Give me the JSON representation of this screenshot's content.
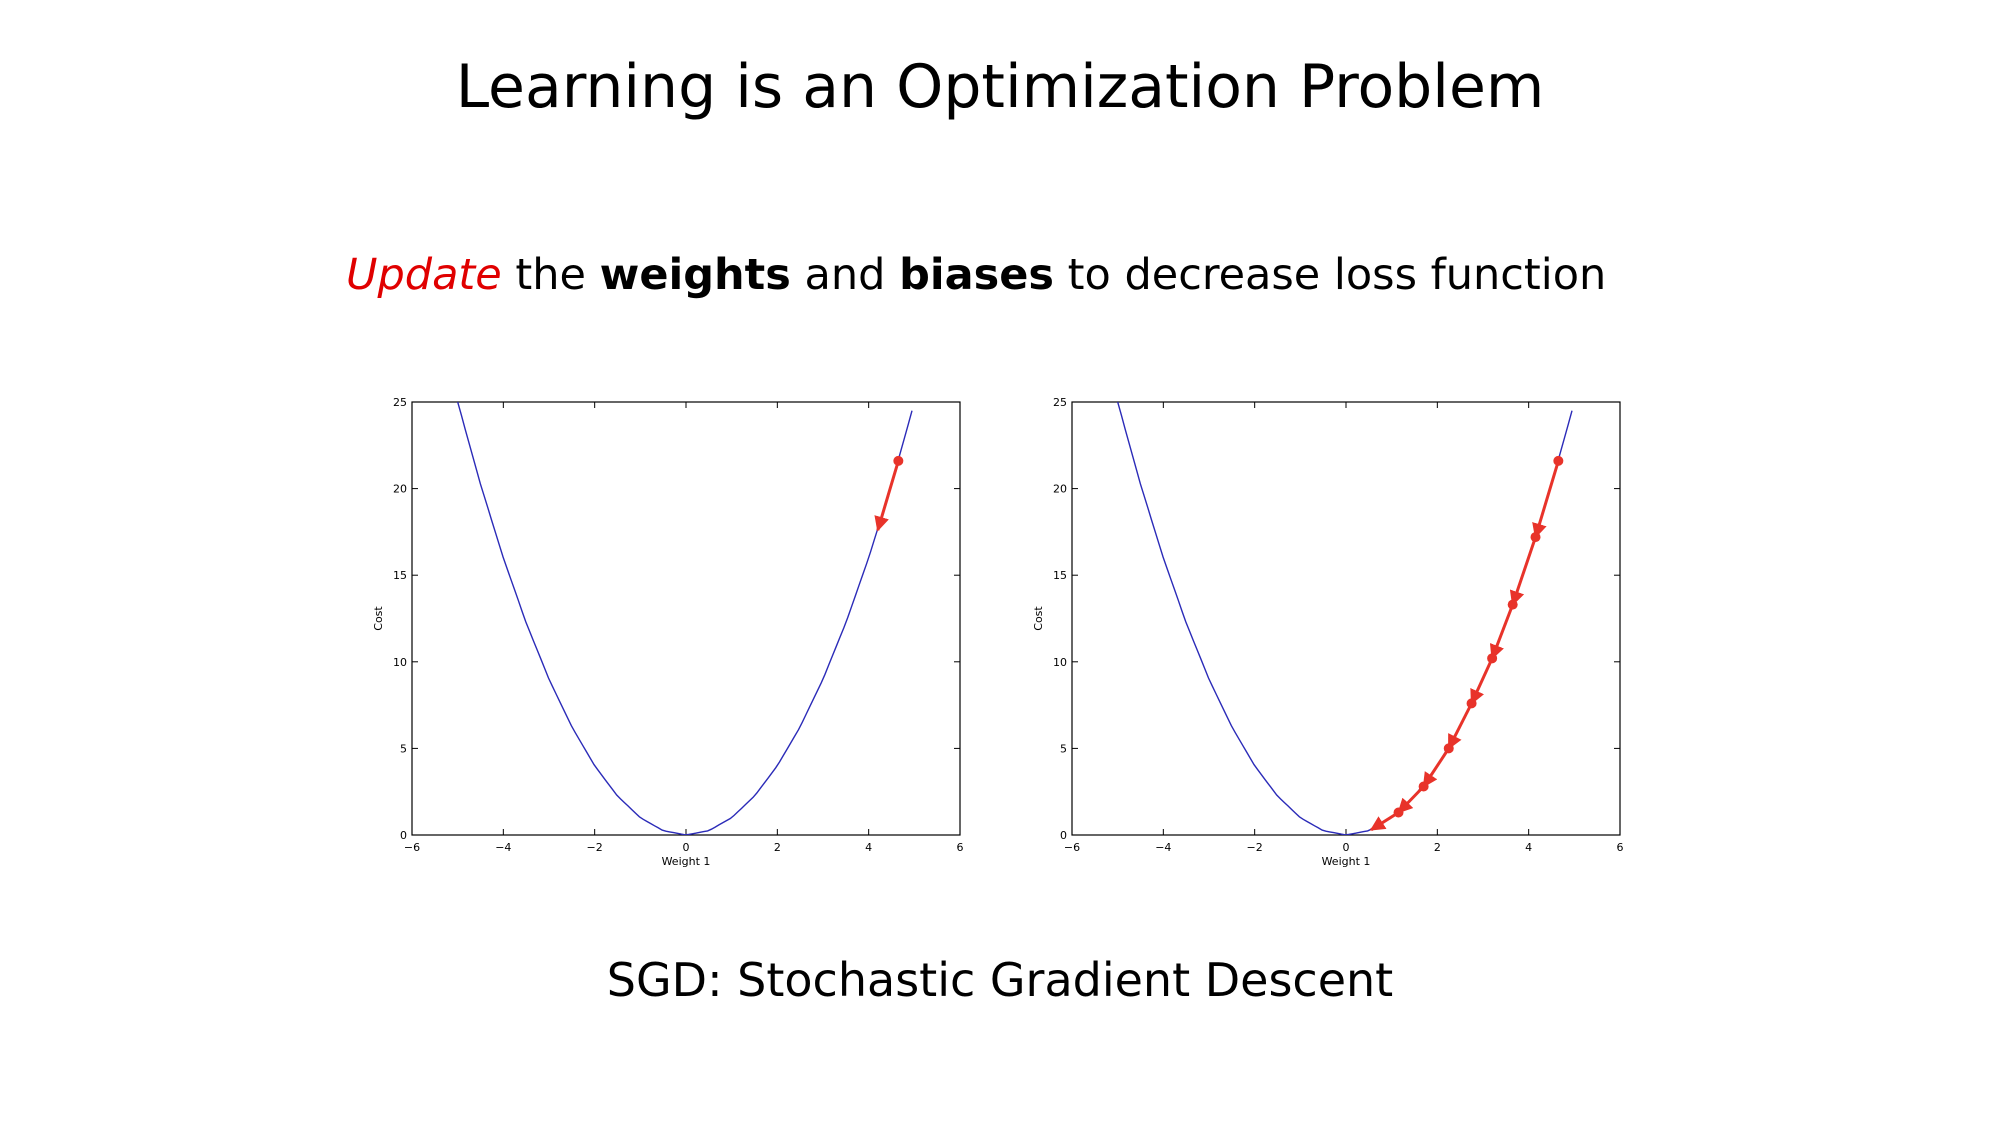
{
  "slide": {
    "title": "Learning is an Optimization Problem",
    "subtitle": {
      "update": "Update",
      "the": " the ",
      "weights": "weights",
      "and": " and ",
      "biases": "biases",
      "rest": " to decrease loss function"
    },
    "caption": "SGD: Stochastic Gradient Descent"
  },
  "colors": {
    "curve": "#2b2bb8",
    "step": "#e8332a",
    "accent_text": "#e00000",
    "axis": "#000000"
  },
  "chart_data": [
    {
      "type": "line",
      "xlabel": "Weight 1",
      "ylabel": "Cost",
      "xlim": [
        -6,
        6
      ],
      "ylim": [
        0,
        25
      ],
      "xticks": [
        -6,
        -4,
        -2,
        0,
        2,
        4,
        6
      ],
      "xtick_labels": [
        "−6",
        "−4",
        "−2",
        "0",
        "2",
        "4",
        "6"
      ],
      "yticks": [
        0,
        5,
        10,
        15,
        20,
        25
      ],
      "ytick_labels": [
        "0",
        "5",
        "10",
        "15",
        "20",
        "25"
      ],
      "series": [
        {
          "kind": "curve",
          "x": [
            -5.0,
            -4.5,
            -4.0,
            -3.5,
            -3.0,
            -2.5,
            -2.0,
            -1.5,
            -1.0,
            -0.5,
            0.0,
            0.5,
            1.0,
            1.5,
            2.0,
            2.5,
            3.0,
            3.5,
            4.0,
            4.5,
            4.95
          ],
          "y": [
            25.0,
            20.25,
            16.0,
            12.25,
            9.0,
            6.25,
            4.0,
            2.25,
            1.0,
            0.25,
            0.0,
            0.25,
            1.0,
            2.25,
            4.0,
            6.25,
            9.0,
            12.25,
            16.0,
            20.25,
            24.5
          ]
        },
        {
          "kind": "descent",
          "x": [
            4.65,
            4.2
          ],
          "y": [
            21.6,
            17.6
          ]
        }
      ]
    },
    {
      "type": "line",
      "xlabel": "Weight 1",
      "ylabel": "Cost",
      "xlim": [
        -6,
        6
      ],
      "ylim": [
        0,
        25
      ],
      "xticks": [
        -6,
        -4,
        -2,
        0,
        2,
        4,
        6
      ],
      "xtick_labels": [
        "−6",
        "−4",
        "−2",
        "0",
        "2",
        "4",
        "6"
      ],
      "yticks": [
        0,
        5,
        10,
        15,
        20,
        25
      ],
      "ytick_labels": [
        "0",
        "5",
        "10",
        "15",
        "20",
        "25"
      ],
      "series": [
        {
          "kind": "curve",
          "x": [
            -5.0,
            -4.5,
            -4.0,
            -3.5,
            -3.0,
            -2.5,
            -2.0,
            -1.5,
            -1.0,
            -0.5,
            0.0,
            0.5,
            1.0,
            1.5,
            2.0,
            2.5,
            3.0,
            3.5,
            4.0,
            4.5,
            4.95
          ],
          "y": [
            25.0,
            20.25,
            16.0,
            12.25,
            9.0,
            6.25,
            4.0,
            2.25,
            1.0,
            0.25,
            0.0,
            0.25,
            1.0,
            2.25,
            4.0,
            6.25,
            9.0,
            12.25,
            16.0,
            20.25,
            24.5
          ]
        },
        {
          "kind": "descent",
          "x": [
            4.65,
            4.15,
            3.65,
            3.2,
            2.75,
            2.25,
            1.7,
            1.15,
            0.55
          ],
          "y": [
            21.6,
            17.2,
            13.3,
            10.2,
            7.6,
            5.0,
            2.8,
            1.3,
            0.3
          ]
        }
      ]
    }
  ]
}
